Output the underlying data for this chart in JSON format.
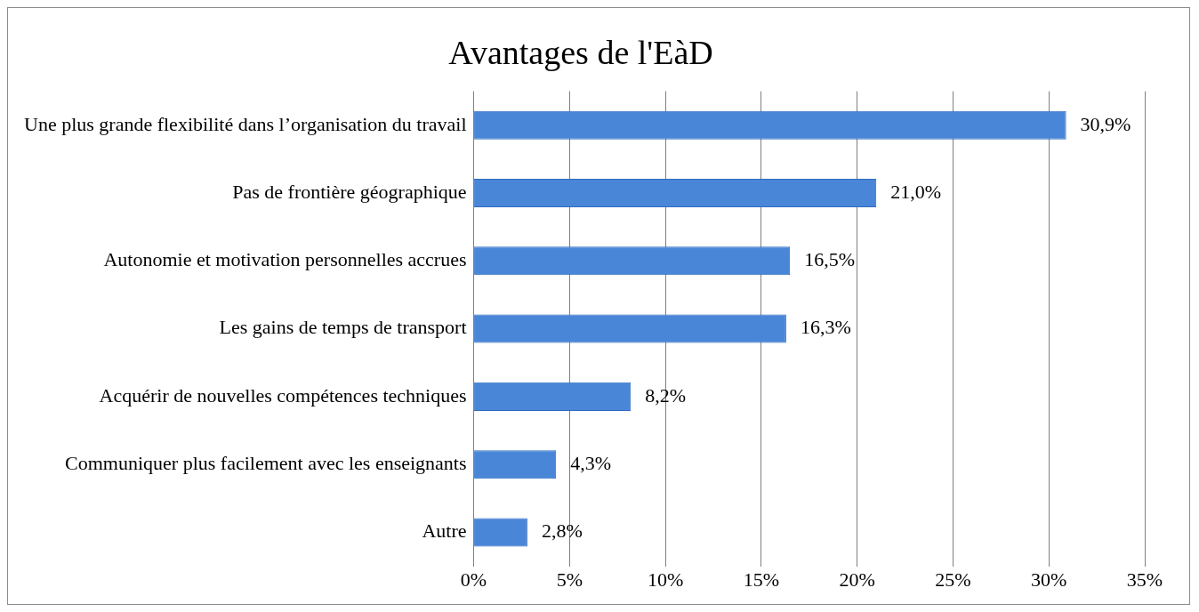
{
  "chart_data": {
    "type": "bar",
    "orientation": "horizontal",
    "title": "Avantages de l'EàD",
    "categories": [
      "Une plus grande flexibilité dans l’organisation du travail",
      "Pas de frontière géographique",
      "Autonomie et motivation personnelles accrues",
      "Les gains de temps de transport",
      "Acquérir de nouvelles compétences techniques",
      "Communiquer plus facilement avec les enseignants",
      "Autre"
    ],
    "values": [
      30.9,
      21.0,
      16.5,
      16.3,
      8.2,
      4.3,
      2.8
    ],
    "value_labels": [
      "30,9%",
      "21,0%",
      "16,5%",
      "16,3%",
      "8,2%",
      "4,3%",
      "2,8%"
    ],
    "color": "#4a86d8",
    "xlim": [
      0,
      35
    ],
    "xticks": [
      {
        "value": 0,
        "label": "0%"
      },
      {
        "value": 5,
        "label": "5%"
      },
      {
        "value": 10,
        "label": "10%"
      },
      {
        "value": 15,
        "label": "15%"
      },
      {
        "value": 20,
        "label": "20%"
      },
      {
        "value": 25,
        "label": "25%"
      },
      {
        "value": 30,
        "label": "30%"
      },
      {
        "value": 35,
        "label": "35%"
      }
    ],
    "grid": "x",
    "legend": false
  }
}
